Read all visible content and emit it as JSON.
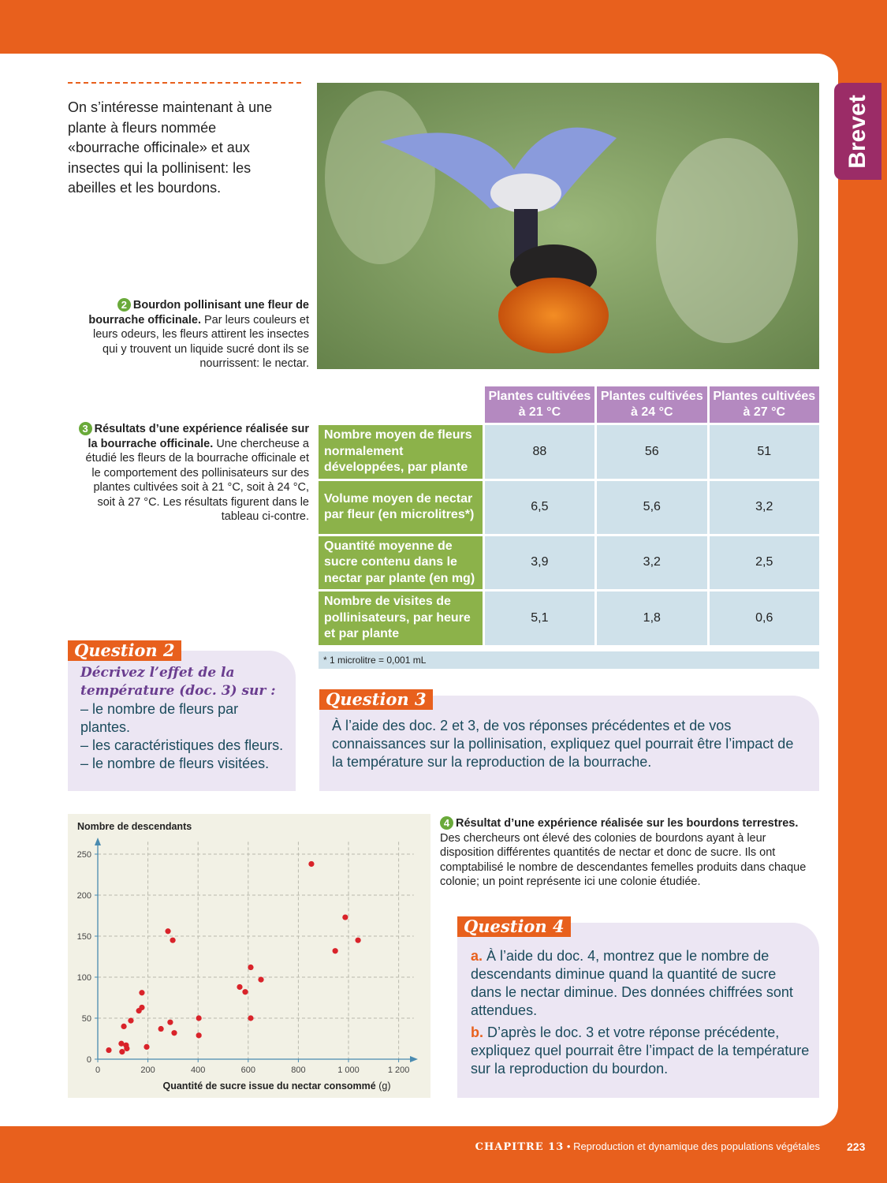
{
  "tab": "Brevet",
  "intro": "On s’intéresse maintenant à une plante à fleurs nommée «bourrache officinale» et aux insectes qui la pollinisent: les abeilles et les bourdons.",
  "doc2": {
    "number": "2",
    "title": "Bourdon pollinisant une fleur de bourrache officinale.",
    "text": "Par leurs couleurs et leurs odeurs, les fleurs attirent les insectes qui y trouvent un liquide sucré dont ils se nourrissent: le nectar."
  },
  "doc3": {
    "number": "3",
    "title": "Résultats d’une expérience réalisée sur la bourrache officinale.",
    "text": "Une chercheuse a étudié les fleurs de la bourrache officinale et le comportement des pollinisateurs sur des plantes cultivées soit à 21 °C, soit à 24 °C, soit à 27 °C. Les résultats figurent dans le tableau ci-contre."
  },
  "table": {
    "columns": [
      "Plantes cultivées à 21 °C",
      "Plantes cultivées à 24 °C",
      "Plantes cultivées à 27 °C"
    ],
    "rows": [
      {
        "label": "Nombre moyen de fleurs normalement développées, par plante",
        "values": [
          "88",
          "56",
          "51"
        ]
      },
      {
        "label": "Volume moyen de nectar par fleur (en microlitres*)",
        "values": [
          "6,5",
          "5,6",
          "3,2"
        ]
      },
      {
        "label": "Quantité moyenne de sucre contenu dans le nectar par plante (en mg)",
        "values": [
          "3,9",
          "3,2",
          "2,5"
        ]
      },
      {
        "label": "Nombre de visites de pollinisateurs, par heure et par plante",
        "values": [
          "5,1",
          "1,8",
          "0,6"
        ]
      }
    ],
    "note": "* 1 microlitre = 0,001 mL"
  },
  "question2": {
    "label": "Question 2",
    "lead": "Décrivez l’effet de la température (doc. 3) sur :",
    "items": [
      "– le nombre de fleurs par plantes.",
      "– les caractéristiques des fleurs.",
      "– le nombre de fleurs visitées."
    ]
  },
  "question3": {
    "label": "Question 3",
    "text": "À l’aide des doc. 2 et 3, de vos réponses précédentes et de vos connaissances sur la pollinisation, expliquez quel pourrait être l’impact de la température sur la reproduction de la bourrache."
  },
  "doc4": {
    "number": "4",
    "title": "Résultat d’une expérience réalisée sur les bourdons terrestres.",
    "text": "Des chercheurs ont élevé des colonies de bourdons ayant à leur disposition différentes quantités de nectar et donc de sucre. Ils ont comptabilisé le nombre de descendantes femelles produits dans chaque colonie; un point représente ici une colonie étudiée."
  },
  "question4": {
    "label": "Question 4",
    "a": {
      "letter": "a.",
      "text": "À l’aide du doc. 4, montrez que le nombre de descendants diminue quand la quantité de sucre dans le nectar diminue. Des données chiffrées sont attendues."
    },
    "b": {
      "letter": "b.",
      "text": "D’après le doc. 3 et votre réponse précédente, expliquez quel pourrait être l’impact de la température sur la reproduction du bourdon."
    }
  },
  "footer": {
    "chapter": "CHAPITRE 13",
    "separator": "•",
    "title": "Reproduction et dynamique des populations végétales",
    "page": "223"
  },
  "chart_data": {
    "type": "scatter",
    "y_label": "Nombre de descendants",
    "x_label": "Quantité de sucre issue du nectar consommé",
    "x_unit": "(g)",
    "color": "#d9232a",
    "grid": true,
    "x": [
      44,
      94,
      97,
      104,
      113,
      116,
      132,
      164,
      176,
      176,
      195,
      252,
      280,
      299,
      289,
      305,
      403,
      403,
      566,
      588,
      610,
      610,
      651,
      852,
      947,
      987,
      1038
    ],
    "y": [
      11,
      19,
      9,
      40,
      17,
      13,
      47,
      59,
      63,
      81,
      15,
      37,
      156,
      145,
      45,
      32,
      50,
      29,
      88,
      82,
      112,
      50,
      97,
      238,
      132,
      173,
      145
    ],
    "xlim": [
      0,
      1260
    ],
    "ylim": [
      0,
      265
    ],
    "xticks": [
      0,
      200,
      400,
      600,
      800,
      {
        "value": 1000,
        "label": "1 000"
      },
      {
        "value": 1200,
        "label": "1 200"
      }
    ],
    "yticks": [
      0,
      50,
      100,
      150,
      200,
      250
    ]
  }
}
